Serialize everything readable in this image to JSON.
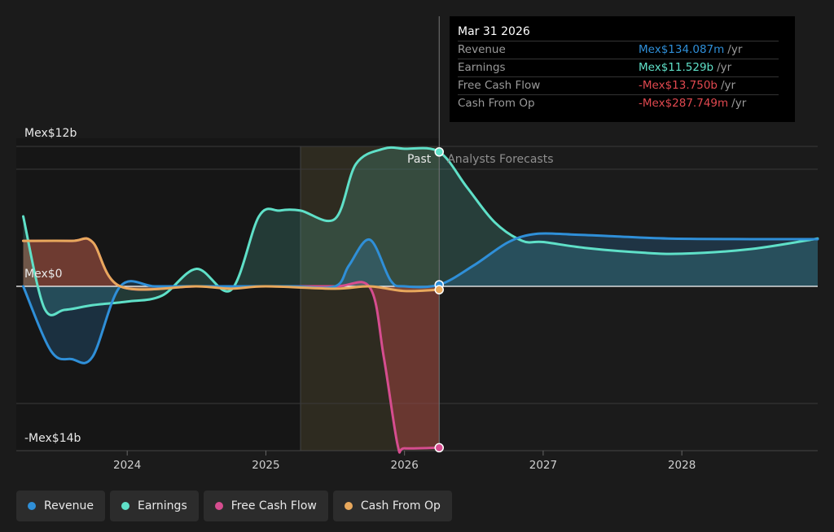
{
  "chart_data": {
    "type": "line",
    "y_labels": {
      "top": "Mex$12b",
      "zero": "Mex$0",
      "bottom": "-Mex$14b"
    },
    "ylim": [
      -14,
      12
    ],
    "x_ticks": [
      "2024",
      "2025",
      "2026",
      "2027",
      "2028"
    ],
    "xlim": [
      2023.2,
      2028.98
    ],
    "past_label": "Past",
    "forecast_label": "Analysts Forecasts",
    "divider_x": 2026.25,
    "shade_range": [
      2025.25,
      2026.25
    ],
    "series": [
      {
        "name": "Revenue",
        "color": "#2f8fd8",
        "x": [
          2023.25,
          2023.45,
          2023.6,
          2023.75,
          2023.95,
          2024.2,
          2024.5,
          2024.8,
          2025.0,
          2025.2,
          2025.5,
          2025.6,
          2025.75,
          2025.9,
          2026.0,
          2026.25,
          2026.5,
          2026.75,
          2026.95,
          2027.2,
          2027.5,
          2027.9,
          2028.5,
          2028.98
        ],
        "y": [
          0,
          -5.5,
          -6.2,
          -6.0,
          0,
          0,
          0,
          0,
          0,
          0,
          0,
          1.8,
          4.0,
          0.5,
          0,
          0.134,
          1.8,
          3.8,
          4.5,
          4.45,
          4.3,
          4.1,
          4.05,
          4.05
        ]
      },
      {
        "name": "Earnings",
        "color": "#5fe0c8",
        "x": [
          2023.25,
          2023.4,
          2023.55,
          2023.75,
          2024.0,
          2024.25,
          2024.5,
          2024.75,
          2024.95,
          2025.1,
          2025.25,
          2025.5,
          2025.65,
          2025.85,
          2026.0,
          2026.25,
          2026.45,
          2026.65,
          2026.85,
          2027.0,
          2027.3,
          2027.7,
          2028.0,
          2028.5,
          2028.98
        ],
        "y": [
          6,
          -1.8,
          -2.0,
          -1.6,
          -1.3,
          -0.8,
          1.5,
          -0.3,
          6.0,
          6.5,
          6.5,
          5.8,
          10.5,
          11.8,
          11.8,
          11.529,
          8.5,
          5.5,
          3.9,
          3.8,
          3.3,
          2.9,
          2.8,
          3.2,
          4.1
        ]
      },
      {
        "name": "Free Cash Flow",
        "color": "#d64d8f",
        "x": [
          2023.25,
          2023.6,
          2023.75,
          2023.95,
          2024.5,
          2025.0,
          2025.5,
          2025.75,
          2025.85,
          2025.95,
          2026.0,
          2026.25
        ],
        "y": [
          3.9,
          3.9,
          3.8,
          0,
          0,
          0,
          0,
          -0.1,
          -6.0,
          -13.5,
          -13.8,
          -13.75
        ]
      },
      {
        "name": "Cash From Op",
        "color": "#e8a85c",
        "x": [
          2023.25,
          2023.6,
          2023.75,
          2023.95,
          2024.5,
          2024.75,
          2025.0,
          2025.5,
          2025.75,
          2026.0,
          2026.25
        ],
        "y": [
          3.9,
          3.9,
          3.8,
          0,
          0,
          -0.2,
          0,
          -0.2,
          0,
          -0.4,
          -0.288
        ]
      }
    ],
    "tooltip": {
      "date": "Mar 31 2026",
      "rows": [
        {
          "label": "Revenue",
          "value": "Mex$134.087m",
          "unit": "/yr",
          "color": "#2f8fd8"
        },
        {
          "label": "Earnings",
          "value": "Mex$11.529b",
          "unit": "/yr",
          "color": "#5fe0c8"
        },
        {
          "label": "Free Cash Flow",
          "value": "-Mex$13.750b",
          "unit": "/yr",
          "color": "#e0484f"
        },
        {
          "label": "Cash From Op",
          "value": "-Mex$287.749m",
          "unit": "/yr",
          "color": "#e0484f"
        }
      ]
    }
  },
  "legend": [
    {
      "label": "Revenue",
      "color": "#2f8fd8"
    },
    {
      "label": "Earnings",
      "color": "#5fe0c8"
    },
    {
      "label": "Free Cash Flow",
      "color": "#d64d8f"
    },
    {
      "label": "Cash From Op",
      "color": "#e8a85c"
    }
  ]
}
